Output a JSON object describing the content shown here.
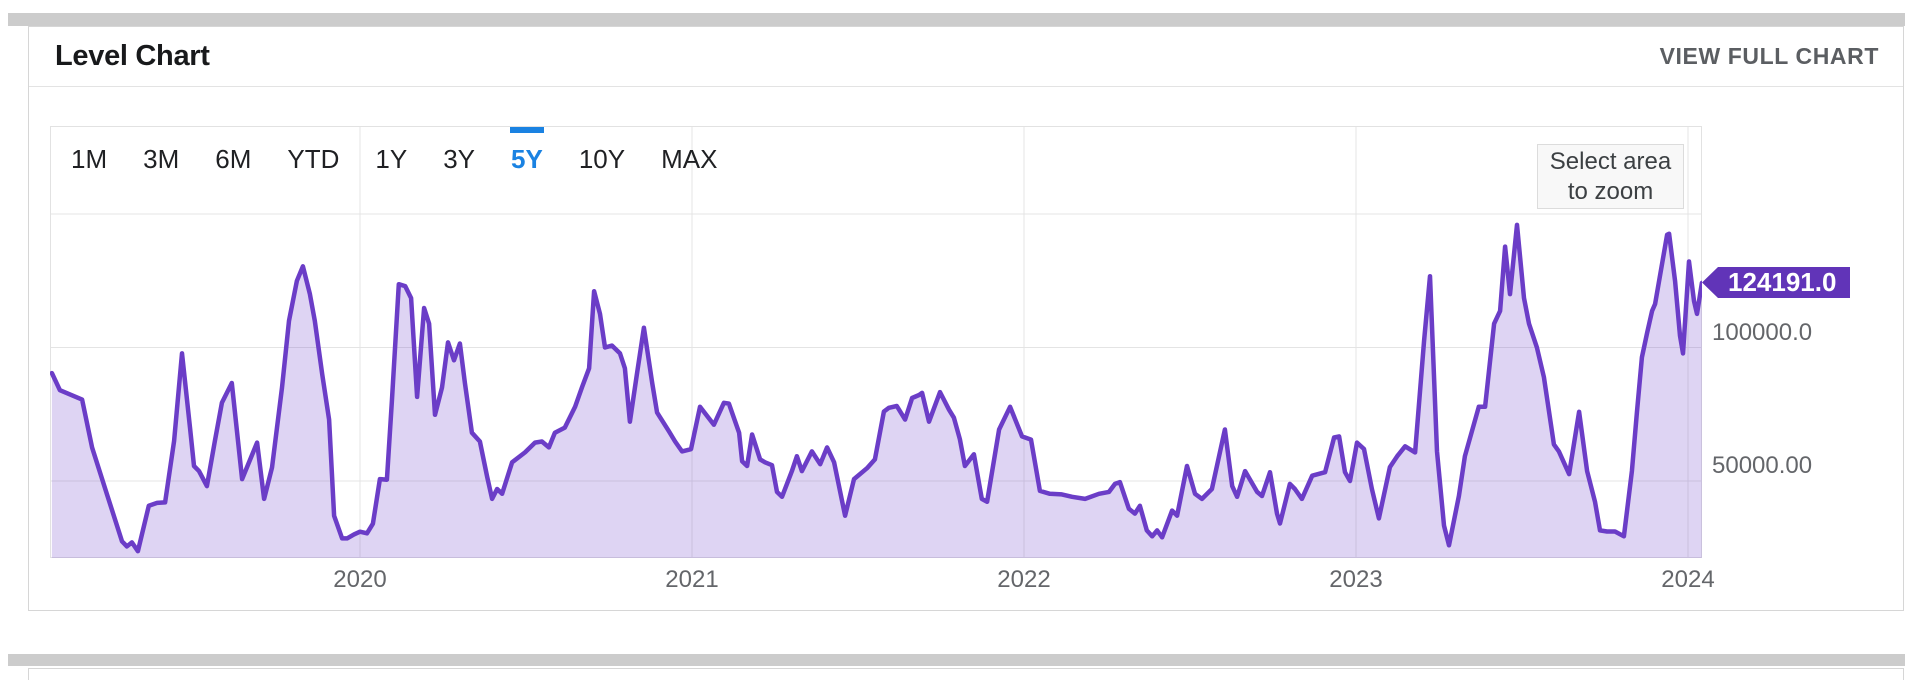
{
  "header": {
    "title": "Level Chart",
    "view_full_chart_label": "VIEW FULL CHART"
  },
  "range_selector": {
    "options": [
      "1M",
      "3M",
      "6M",
      "YTD",
      "1Y",
      "3Y",
      "5Y",
      "10Y",
      "MAX"
    ],
    "selected": "5Y",
    "selected_color": "#1a82e2"
  },
  "zoom_hint": {
    "line1": "Select area",
    "line2": "to zoom"
  },
  "last_value_badge": {
    "text": "124191.0",
    "color": "#6134b8"
  },
  "chart_data": {
    "type": "area",
    "title": "Level Chart",
    "legend": "off",
    "grid": true,
    "line_color": "#6b3dc7",
    "fill_color": "rgba(107,61,199,0.22)",
    "xlim": [
      2019.066,
      2024.045
    ],
    "ylim": [
      21100,
      183000
    ],
    "x_ticks": [
      {
        "label": "2020",
        "value": 2020
      },
      {
        "label": "2021",
        "value": 2021
      },
      {
        "label": "2022",
        "value": 2022
      },
      {
        "label": "2023",
        "value": 2023
      },
      {
        "label": "2024",
        "value": 2024
      }
    ],
    "y_gridlines": [
      50000,
      100000,
      150000
    ],
    "y_axis_labels": [
      {
        "label": "100000.0",
        "value": 100000
      },
      {
        "label": "50000.00",
        "value": 50000
      }
    ],
    "last_value": 124191.0,
    "series": [
      {
        "name": "Level",
        "points": [
          [
            2019.072,
            90400
          ],
          [
            2019.096,
            84000
          ],
          [
            2019.163,
            80500
          ],
          [
            2019.193,
            62500
          ],
          [
            2019.238,
            45000
          ],
          [
            2019.283,
            27400
          ],
          [
            2019.298,
            25500
          ],
          [
            2019.313,
            27000
          ],
          [
            2019.331,
            23700
          ],
          [
            2019.364,
            40700
          ],
          [
            2019.389,
            41800
          ],
          [
            2019.413,
            42000
          ],
          [
            2019.44,
            65000
          ],
          [
            2019.464,
            97800
          ],
          [
            2019.488,
            70000
          ],
          [
            2019.5,
            55600
          ],
          [
            2019.515,
            53700
          ],
          [
            2019.539,
            48100
          ],
          [
            2019.563,
            65000
          ],
          [
            2019.584,
            79300
          ],
          [
            2019.614,
            86700
          ],
          [
            2019.645,
            50700
          ],
          [
            2019.69,
            64400
          ],
          [
            2019.711,
            43300
          ],
          [
            2019.735,
            55000
          ],
          [
            2019.765,
            85000
          ],
          [
            2019.786,
            110000
          ],
          [
            2019.81,
            125000
          ],
          [
            2019.828,
            130400
          ],
          [
            2019.849,
            120000
          ],
          [
            2019.864,
            110000
          ],
          [
            2019.886,
            90000
          ],
          [
            2019.907,
            73000
          ],
          [
            2019.922,
            37000
          ],
          [
            2019.946,
            28500
          ],
          [
            2019.961,
            28500
          ],
          [
            2019.982,
            30000
          ],
          [
            2020.0,
            31000
          ],
          [
            2020.021,
            30400
          ],
          [
            2020.039,
            34000
          ],
          [
            2020.06,
            50700
          ],
          [
            2020.081,
            50500
          ],
          [
            2020.096,
            80000
          ],
          [
            2020.117,
            123700
          ],
          [
            2020.136,
            123000
          ],
          [
            2020.154,
            118500
          ],
          [
            2020.172,
            81500
          ],
          [
            2020.193,
            114800
          ],
          [
            2020.208,
            108900
          ],
          [
            2020.226,
            74800
          ],
          [
            2020.247,
            85000
          ],
          [
            2020.265,
            101900
          ],
          [
            2020.283,
            95200
          ],
          [
            2020.301,
            101500
          ],
          [
            2020.316,
            86700
          ],
          [
            2020.337,
            68100
          ],
          [
            2020.361,
            64800
          ],
          [
            2020.383,
            51500
          ],
          [
            2020.398,
            43300
          ],
          [
            2020.413,
            47000
          ],
          [
            2020.428,
            45200
          ],
          [
            2020.458,
            57000
          ],
          [
            2020.497,
            60700
          ],
          [
            2020.527,
            64400
          ],
          [
            2020.548,
            64800
          ],
          [
            2020.569,
            62600
          ],
          [
            2020.587,
            68100
          ],
          [
            2020.617,
            70000
          ],
          [
            2020.648,
            77800
          ],
          [
            2020.669,
            85200
          ],
          [
            2020.69,
            92200
          ],
          [
            2020.705,
            121100
          ],
          [
            2020.723,
            112600
          ],
          [
            2020.738,
            100000
          ],
          [
            2020.759,
            100700
          ],
          [
            2020.783,
            97800
          ],
          [
            2020.798,
            92200
          ],
          [
            2020.813,
            72200
          ],
          [
            2020.834,
            90000
          ],
          [
            2020.855,
            107400
          ],
          [
            2020.88,
            86700
          ],
          [
            2020.895,
            75600
          ],
          [
            2020.931,
            68500
          ],
          [
            2020.949,
            64800
          ],
          [
            2020.97,
            61100
          ],
          [
            2020.997,
            61900
          ],
          [
            2021.024,
            77800
          ],
          [
            2021.066,
            71100
          ],
          [
            2021.096,
            79300
          ],
          [
            2021.111,
            79000
          ],
          [
            2021.142,
            68100
          ],
          [
            2021.151,
            57400
          ],
          [
            2021.166,
            55600
          ],
          [
            2021.181,
            67400
          ],
          [
            2021.205,
            58100
          ],
          [
            2021.22,
            57000
          ],
          [
            2021.241,
            55900
          ],
          [
            2021.256,
            45900
          ],
          [
            2021.271,
            44100
          ],
          [
            2021.301,
            53700
          ],
          [
            2021.316,
            59300
          ],
          [
            2021.331,
            53700
          ],
          [
            2021.361,
            61100
          ],
          [
            2021.386,
            56300
          ],
          [
            2021.407,
            62600
          ],
          [
            2021.428,
            57000
          ],
          [
            2021.461,
            37000
          ],
          [
            2021.488,
            50700
          ],
          [
            2021.527,
            54800
          ],
          [
            2021.551,
            58100
          ],
          [
            2021.578,
            76000
          ],
          [
            2021.593,
            77400
          ],
          [
            2021.617,
            78100
          ],
          [
            2021.642,
            73000
          ],
          [
            2021.663,
            81100
          ],
          [
            2021.684,
            82200
          ],
          [
            2021.693,
            83000
          ],
          [
            2021.714,
            72200
          ],
          [
            2021.747,
            83300
          ],
          [
            2021.774,
            76700
          ],
          [
            2021.789,
            73700
          ],
          [
            2021.807,
            65600
          ],
          [
            2021.822,
            55600
          ],
          [
            2021.849,
            60000
          ],
          [
            2021.873,
            43300
          ],
          [
            2021.889,
            42200
          ],
          [
            2021.925,
            69300
          ],
          [
            2021.958,
            77800
          ],
          [
            2021.994,
            66700
          ],
          [
            2022.021,
            65500
          ],
          [
            2022.048,
            46300
          ],
          [
            2022.078,
            45200
          ],
          [
            2022.114,
            45000
          ],
          [
            2022.145,
            44100
          ],
          [
            2022.184,
            43300
          ],
          [
            2022.226,
            45200
          ],
          [
            2022.256,
            45900
          ],
          [
            2022.274,
            48900
          ],
          [
            2022.289,
            49600
          ],
          [
            2022.316,
            39600
          ],
          [
            2022.334,
            37800
          ],
          [
            2022.349,
            40700
          ],
          [
            2022.37,
            31500
          ],
          [
            2022.386,
            29300
          ],
          [
            2022.401,
            31500
          ],
          [
            2022.416,
            28900
          ],
          [
            2022.446,
            38900
          ],
          [
            2022.461,
            37000
          ],
          [
            2022.491,
            55600
          ],
          [
            2022.515,
            45200
          ],
          [
            2022.536,
            43300
          ],
          [
            2022.566,
            47000
          ],
          [
            2022.605,
            69300
          ],
          [
            2022.627,
            48100
          ],
          [
            2022.642,
            44100
          ],
          [
            2022.666,
            53700
          ],
          [
            2022.702,
            45900
          ],
          [
            2022.717,
            44400
          ],
          [
            2022.741,
            53300
          ],
          [
            2022.762,
            37800
          ],
          [
            2022.771,
            34100
          ],
          [
            2022.801,
            48900
          ],
          [
            2022.816,
            47000
          ],
          [
            2022.837,
            43300
          ],
          [
            2022.868,
            52000
          ],
          [
            2022.907,
            53300
          ],
          [
            2022.934,
            66300
          ],
          [
            2022.949,
            66700
          ],
          [
            2022.967,
            53300
          ],
          [
            2022.982,
            50000
          ],
          [
            2023.003,
            64400
          ],
          [
            2023.024,
            62000
          ],
          [
            2023.048,
            47000
          ],
          [
            2023.069,
            36000
          ],
          [
            2023.102,
            55200
          ],
          [
            2023.124,
            59300
          ],
          [
            2023.148,
            63000
          ],
          [
            2023.178,
            60700
          ],
          [
            2023.205,
            102600
          ],
          [
            2023.223,
            126700
          ],
          [
            2023.244,
            61100
          ],
          [
            2023.265,
            33300
          ],
          [
            2023.28,
            25900
          ],
          [
            2023.31,
            44400
          ],
          [
            2023.328,
            59300
          ],
          [
            2023.37,
            77800
          ],
          [
            2023.389,
            77800
          ],
          [
            2023.416,
            108900
          ],
          [
            2023.434,
            113700
          ],
          [
            2023.449,
            137800
          ],
          [
            2023.464,
            120000
          ],
          [
            2023.485,
            145900
          ],
          [
            2023.506,
            118500
          ],
          [
            2023.521,
            108900
          ],
          [
            2023.545,
            100000
          ],
          [
            2023.566,
            88900
          ],
          [
            2023.596,
            63700
          ],
          [
            2023.611,
            61100
          ],
          [
            2023.642,
            52600
          ],
          [
            2023.672,
            75900
          ],
          [
            2023.696,
            53700
          ],
          [
            2023.72,
            42200
          ],
          [
            2023.735,
            31500
          ],
          [
            2023.756,
            31100
          ],
          [
            2023.78,
            31100
          ],
          [
            2023.807,
            29300
          ],
          [
            2023.831,
            53700
          ],
          [
            2023.846,
            75600
          ],
          [
            2023.861,
            96300
          ],
          [
            2023.877,
            105600
          ],
          [
            2023.892,
            113700
          ],
          [
            2023.901,
            116300
          ],
          [
            2023.937,
            142200
          ],
          [
            2023.943,
            142600
          ],
          [
            2023.961,
            124800
          ],
          [
            2023.976,
            104400
          ],
          [
            2023.985,
            97800
          ],
          [
            2024.003,
            132200
          ],
          [
            2024.018,
            117400
          ],
          [
            2024.027,
            112600
          ],
          [
            2024.042,
            124191
          ]
        ]
      }
    ]
  }
}
